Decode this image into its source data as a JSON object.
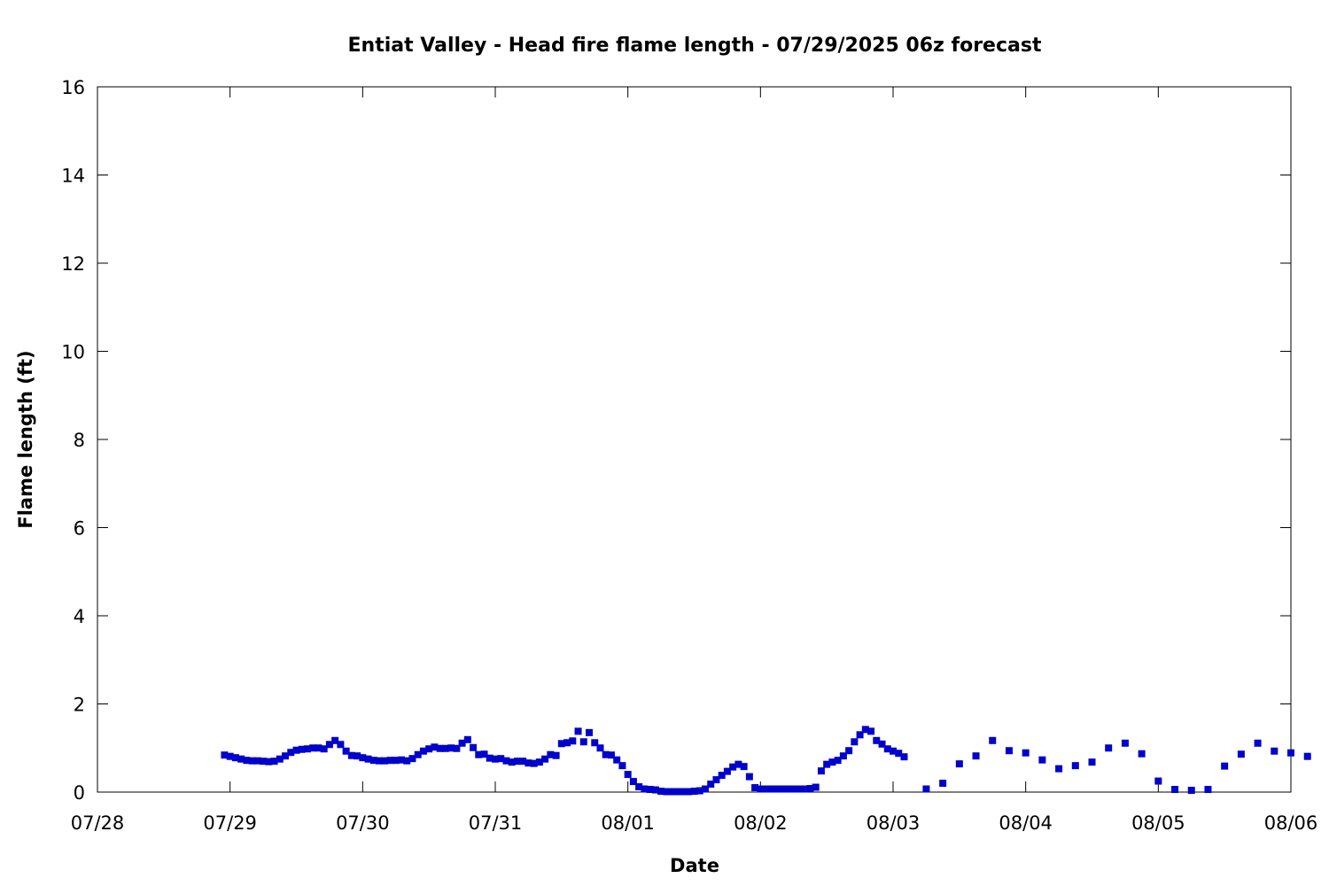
{
  "chart_data": {
    "type": "scatter",
    "title": "Entiat Valley - Head fire flame length - 07/29/2025 06z forecast",
    "xlabel": "Date",
    "ylabel": "Flame length (ft)",
    "xlim": [
      "07/28",
      "08/06"
    ],
    "ylim": [
      0,
      16
    ],
    "x_ticks": [
      "07/28",
      "07/29",
      "07/30",
      "07/31",
      "08/01",
      "08/02",
      "08/03",
      "08/04",
      "08/05",
      "08/06"
    ],
    "y_ticks": [
      0,
      2,
      4,
      6,
      8,
      10,
      12,
      14,
      16
    ],
    "grid": false,
    "marker_color": "#0000cc",
    "series": [
      {
        "points": [
          [
            "07/28 23:00",
            0.84
          ],
          [
            "07/29 00:00",
            0.81
          ],
          [
            "07/29 01:00",
            0.78
          ],
          [
            "07/29 02:00",
            0.75
          ],
          [
            "07/29 03:00",
            0.72
          ],
          [
            "07/29 04:00",
            0.71
          ],
          [
            "07/29 05:00",
            0.71
          ],
          [
            "07/29 06:00",
            0.7
          ],
          [
            "07/29 07:00",
            0.69
          ],
          [
            "07/29 08:00",
            0.7
          ],
          [
            "07/29 09:00",
            0.75
          ],
          [
            "07/29 10:00",
            0.82
          ],
          [
            "07/29 11:00",
            0.9
          ],
          [
            "07/29 12:00",
            0.95
          ],
          [
            "07/29 13:00",
            0.97
          ],
          [
            "07/29 14:00",
            0.98
          ],
          [
            "07/29 15:00",
            1.0
          ],
          [
            "07/29 16:00",
            1.0
          ],
          [
            "07/29 17:00",
            0.98
          ],
          [
            "07/29 18:00",
            1.08
          ],
          [
            "07/29 19:00",
            1.17
          ],
          [
            "07/29 20:00",
            1.08
          ],
          [
            "07/29 21:00",
            0.93
          ],
          [
            "07/29 22:00",
            0.83
          ],
          [
            "07/29 23:00",
            0.82
          ],
          [
            "07/30 00:00",
            0.78
          ],
          [
            "07/30 01:00",
            0.75
          ],
          [
            "07/30 02:00",
            0.72
          ],
          [
            "07/30 03:00",
            0.71
          ],
          [
            "07/30 04:00",
            0.71
          ],
          [
            "07/30 05:00",
            0.72
          ],
          [
            "07/30 06:00",
            0.72
          ],
          [
            "07/30 07:00",
            0.73
          ],
          [
            "07/30 08:00",
            0.71
          ],
          [
            "07/30 09:00",
            0.76
          ],
          [
            "07/30 10:00",
            0.85
          ],
          [
            "07/30 11:00",
            0.93
          ],
          [
            "07/30 12:00",
            0.98
          ],
          [
            "07/30 13:00",
            1.02
          ],
          [
            "07/30 14:00",
            0.99
          ],
          [
            "07/30 15:00",
            0.99
          ],
          [
            "07/30 16:00",
            1.0
          ],
          [
            "07/30 17:00",
            0.99
          ],
          [
            "07/30 18:00",
            1.11
          ],
          [
            "07/30 19:00",
            1.19
          ],
          [
            "07/30 20:00",
            1.01
          ],
          [
            "07/30 21:00",
            0.85
          ],
          [
            "07/30 22:00",
            0.86
          ],
          [
            "07/30 23:00",
            0.77
          ],
          [
            "07/31 00:00",
            0.75
          ],
          [
            "07/31 01:00",
            0.76
          ],
          [
            "07/31 02:00",
            0.71
          ],
          [
            "07/31 03:00",
            0.68
          ],
          [
            "07/31 04:00",
            0.7
          ],
          [
            "07/31 05:00",
            0.7
          ],
          [
            "07/31 06:00",
            0.66
          ],
          [
            "07/31 07:00",
            0.65
          ],
          [
            "07/31 08:00",
            0.68
          ],
          [
            "07/31 09:00",
            0.75
          ],
          [
            "07/31 10:00",
            0.85
          ],
          [
            "07/31 11:00",
            0.83
          ],
          [
            "07/31 12:00",
            1.1
          ],
          [
            "07/31 13:00",
            1.12
          ],
          [
            "07/31 14:00",
            1.16
          ],
          [
            "07/31 15:00",
            1.38
          ],
          [
            "07/31 16:00",
            1.14
          ],
          [
            "07/31 17:00",
            1.35
          ],
          [
            "07/31 18:00",
            1.12
          ],
          [
            "07/31 19:00",
            1.0
          ],
          [
            "07/31 20:00",
            0.85
          ],
          [
            "07/31 21:00",
            0.84
          ],
          [
            "07/31 22:00",
            0.73
          ],
          [
            "07/31 23:00",
            0.6
          ],
          [
            "08/01 00:00",
            0.4
          ],
          [
            "08/01 01:00",
            0.24
          ],
          [
            "08/01 02:00",
            0.12
          ],
          [
            "08/01 03:00",
            0.07
          ],
          [
            "08/01 04:00",
            0.06
          ],
          [
            "08/01 05:00",
            0.05
          ],
          [
            "08/01 06:00",
            0.02
          ],
          [
            "08/01 07:00",
            0.01
          ],
          [
            "08/01 08:00",
            0.01
          ],
          [
            "08/01 09:00",
            0.01
          ],
          [
            "08/01 10:00",
            0.01
          ],
          [
            "08/01 11:00",
            0.01
          ],
          [
            "08/01 12:00",
            0.02
          ],
          [
            "08/01 13:00",
            0.03
          ],
          [
            "08/01 14:00",
            0.07
          ],
          [
            "08/01 15:00",
            0.18
          ],
          [
            "08/01 16:00",
            0.28
          ],
          [
            "08/01 17:00",
            0.38
          ],
          [
            "08/01 18:00",
            0.47
          ],
          [
            "08/01 19:00",
            0.57
          ],
          [
            "08/01 20:00",
            0.63
          ],
          [
            "08/01 21:00",
            0.58
          ],
          [
            "08/01 22:00",
            0.35
          ],
          [
            "08/01 23:00",
            0.1
          ],
          [
            "08/02 00:00",
            0.07
          ],
          [
            "08/02 01:00",
            0.07
          ],
          [
            "08/02 02:00",
            0.07
          ],
          [
            "08/02 03:00",
            0.07
          ],
          [
            "08/02 04:00",
            0.07
          ],
          [
            "08/02 05:00",
            0.07
          ],
          [
            "08/02 06:00",
            0.07
          ],
          [
            "08/02 07:00",
            0.07
          ],
          [
            "08/02 08:00",
            0.07
          ],
          [
            "08/02 09:00",
            0.08
          ],
          [
            "08/02 10:00",
            0.11
          ],
          [
            "08/02 11:00",
            0.48
          ],
          [
            "08/02 12:00",
            0.63
          ],
          [
            "08/02 13:00",
            0.68
          ],
          [
            "08/02 14:00",
            0.72
          ],
          [
            "08/02 15:00",
            0.82
          ],
          [
            "08/02 16:00",
            0.94
          ],
          [
            "08/02 17:00",
            1.14
          ],
          [
            "08/02 18:00",
            1.3
          ],
          [
            "08/02 19:00",
            1.42
          ],
          [
            "08/02 20:00",
            1.38
          ],
          [
            "08/02 21:00",
            1.17
          ],
          [
            "08/02 22:00",
            1.09
          ],
          [
            "08/02 23:00",
            0.98
          ],
          [
            "08/03 00:00",
            0.93
          ],
          [
            "08/03 01:00",
            0.88
          ],
          [
            "08/03 02:00",
            0.8
          ],
          [
            "08/03 06:00",
            0.07
          ],
          [
            "08/03 09:00",
            0.2
          ],
          [
            "08/03 12:00",
            0.64
          ],
          [
            "08/03 15:00",
            0.82
          ],
          [
            "08/03 18:00",
            1.17
          ],
          [
            "08/03 21:00",
            0.94
          ],
          [
            "08/04 00:00",
            0.89
          ],
          [
            "08/04 03:00",
            0.73
          ],
          [
            "08/04 06:00",
            0.53
          ],
          [
            "08/04 09:00",
            0.6
          ],
          [
            "08/04 12:00",
            0.68
          ],
          [
            "08/04 15:00",
            1.0
          ],
          [
            "08/04 18:00",
            1.11
          ],
          [
            "08/04 21:00",
            0.87
          ],
          [
            "08/05 00:00",
            0.25
          ],
          [
            "08/05 03:00",
            0.06
          ],
          [
            "08/05 06:00",
            0.04
          ],
          [
            "08/05 09:00",
            0.06
          ],
          [
            "08/05 12:00",
            0.59
          ],
          [
            "08/05 15:00",
            0.86
          ],
          [
            "08/05 18:00",
            1.11
          ],
          [
            "08/05 21:00",
            0.93
          ],
          [
            "08/06 00:00",
            0.89
          ],
          [
            "08/06 03:00",
            0.81
          ]
        ]
      }
    ]
  }
}
